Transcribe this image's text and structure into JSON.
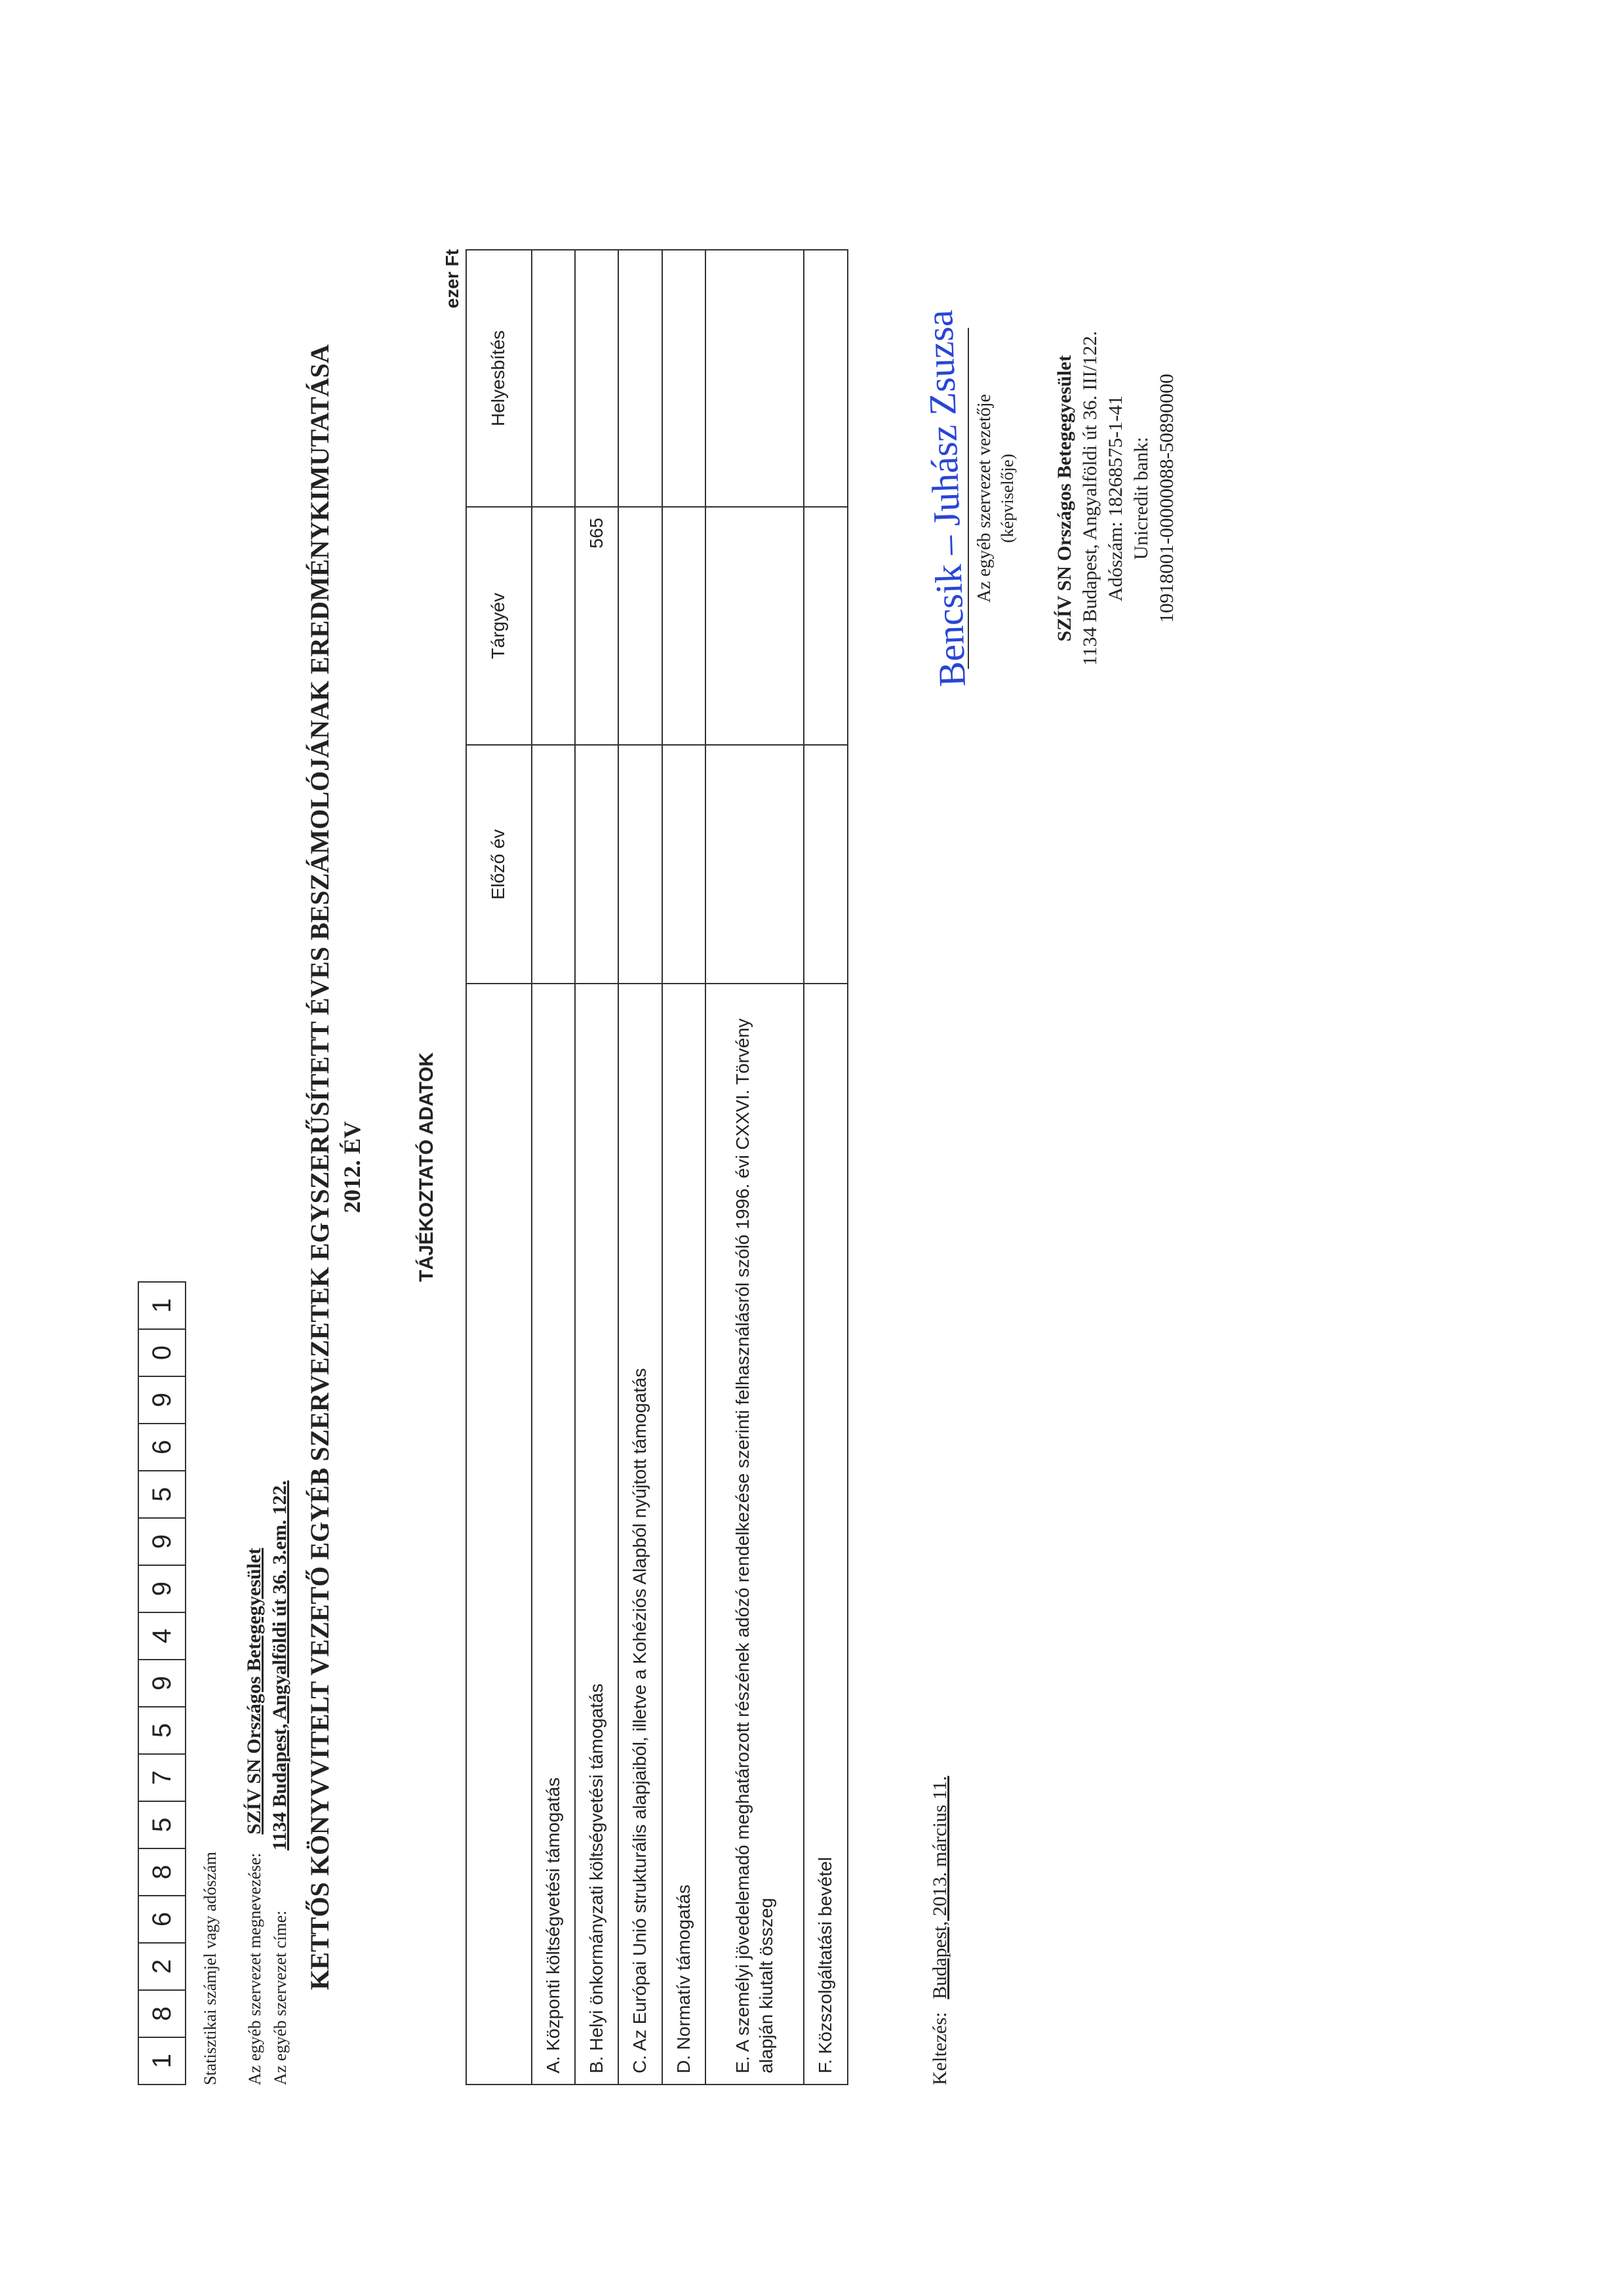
{
  "stat_number_digits": [
    "1",
    "8",
    "2",
    "6",
    "8",
    "5",
    "7",
    "5",
    "9",
    "4",
    "9",
    "9",
    "5",
    "6",
    "9",
    "0",
    "1"
  ],
  "stat_label": "Statisztikai számjel vagy adószám",
  "meta": {
    "org_label": "Az egyéb szervezet megnevezése:",
    "org_value": "SZÍV SN Országos Betegegyesület",
    "addr_label": "Az egyéb szervezet címe:",
    "addr_value": "1134 Budapest, Angyalföldi út 36. 3.em. 122."
  },
  "title_line1": "KETTŐS KÖNYVVITELT VEZETŐ EGYÉB SZERVEZETEK EGYSZERŰSÍTETT ÉVES BESZÁMOLÓJÁNAK EREDMÉNYKIMUTATÁSA",
  "title_line2": "2012. ÉV",
  "subtitle": "TÁJÉKOZTATÓ ADATOK",
  "unit_label": "ezer Ft",
  "columns": {
    "desc": "",
    "prev": "Előző év",
    "curr": "Tárgyév",
    "corr": "Helyesbítés"
  },
  "rows": [
    {
      "label": "A. Központi költségvetési támogatás",
      "prev": "",
      "curr": "",
      "corr": "",
      "tall": false
    },
    {
      "label": "B. Helyi önkormányzati költségvetési támogatás",
      "prev": "",
      "curr": "565",
      "corr": "",
      "tall": false
    },
    {
      "label": "C. Az Európai Unió strukturális alapjaiból, illetve a Kohéziós Alapból nyújtott támogatás",
      "prev": "",
      "curr": "",
      "corr": "",
      "tall": false
    },
    {
      "label": "D. Normatív támogatás",
      "prev": "",
      "curr": "",
      "corr": "",
      "tall": false
    },
    {
      "label": "E. A személyi jövedelemadó meghatározott részének adózó rendelkezése szerinti felhasználásról szóló 1996. évi CXXVI. Törvény alapján kiutalt összeg",
      "prev": "",
      "curr": "",
      "corr": "",
      "tall": true
    },
    {
      "label": "F. Közszolgáltatási bevétel",
      "prev": "",
      "curr": "",
      "corr": "",
      "tall": false
    }
  ],
  "date": {
    "label": "Keltezés:",
    "value": "Budapest, 2013. március 11."
  },
  "signature": {
    "handwriting": "Bencsik – Juhász Zsuzsa",
    "caption1": "Az egyéb szervezet vezetője",
    "caption2": "(képviselője)"
  },
  "stamp": {
    "l1": "SZÍV SN Országos Betegegyesület",
    "l2": "1134 Budapest, Angyalföldi út 36. III/122.",
    "l3": "Adószám: 18268575-1-41",
    "l4": "Unicredit bank:",
    "l5": "10918001-00000088-50890000"
  }
}
